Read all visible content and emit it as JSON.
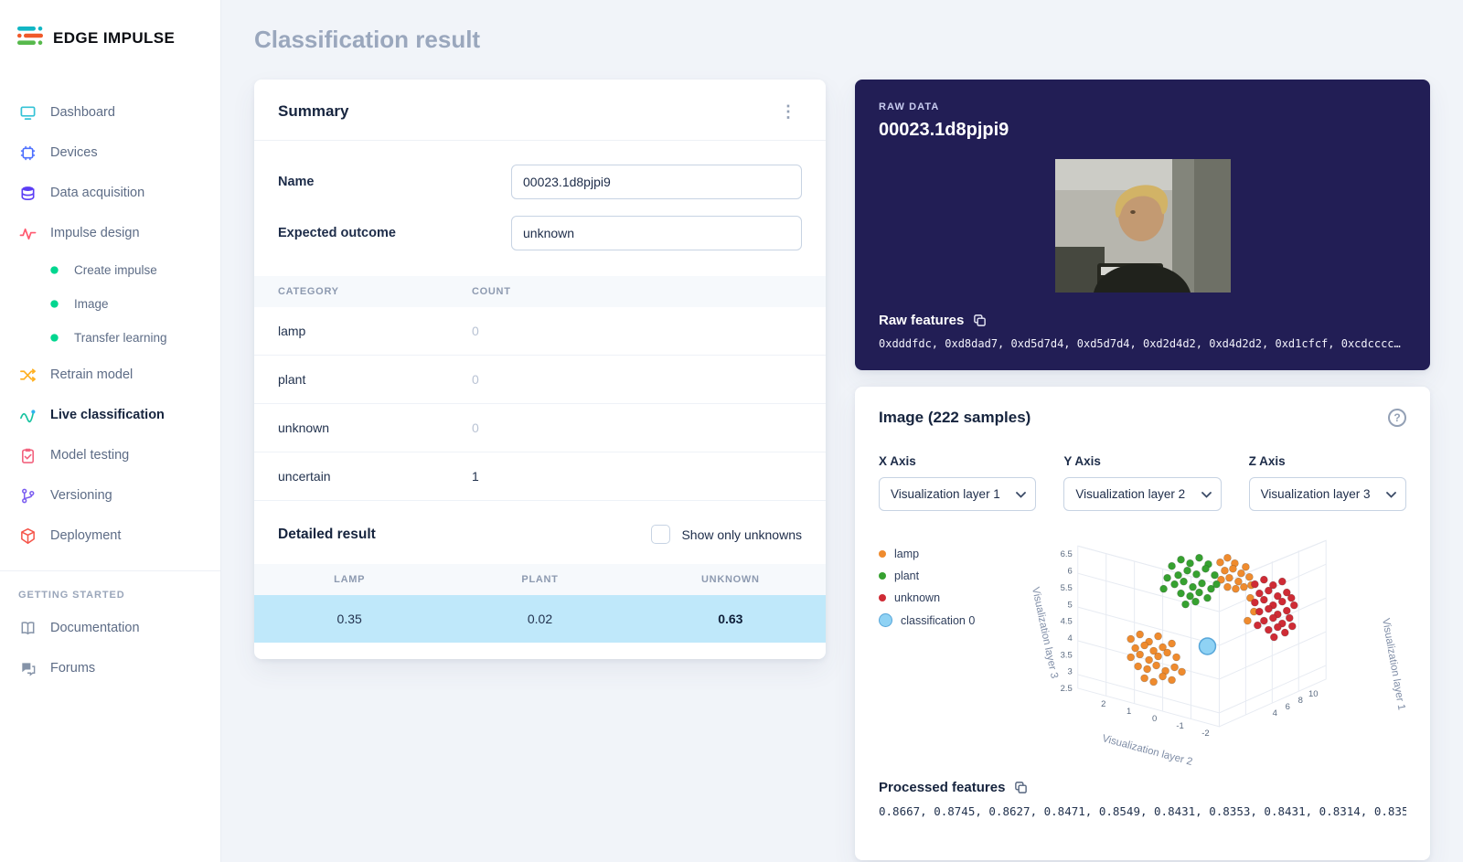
{
  "page": {
    "title": "Classification result"
  },
  "sidebar": {
    "logo_text": "EDGE IMPULSE",
    "items": [
      {
        "id": "dashboard",
        "label": "Dashboard",
        "icon": "dashboard-icon",
        "type": "main"
      },
      {
        "id": "devices",
        "label": "Devices",
        "icon": "devices-icon",
        "type": "main"
      },
      {
        "id": "data-acquisition",
        "label": "Data acquisition",
        "icon": "data-acquisition-icon",
        "type": "main"
      },
      {
        "id": "impulse-design",
        "label": "Impulse design",
        "icon": "impulse-design-icon",
        "type": "main"
      },
      {
        "id": "create-impulse",
        "label": "Create impulse",
        "icon": "status-dot-icon",
        "type": "sub"
      },
      {
        "id": "image",
        "label": "Image",
        "icon": "status-dot-icon",
        "type": "sub"
      },
      {
        "id": "transfer-learning",
        "label": "Transfer learning",
        "icon": "status-dot-icon",
        "type": "sub"
      },
      {
        "id": "retrain-model",
        "label": "Retrain model",
        "icon": "retrain-icon",
        "type": "main"
      },
      {
        "id": "live-classification",
        "label": "Live classification",
        "icon": "live-classification-icon",
        "type": "main",
        "active": true
      },
      {
        "id": "model-testing",
        "label": "Model testing",
        "icon": "model-testing-icon",
        "type": "main"
      },
      {
        "id": "versioning",
        "label": "Versioning",
        "icon": "versioning-icon",
        "type": "main"
      },
      {
        "id": "deployment",
        "label": "Deployment",
        "icon": "deployment-icon",
        "type": "main"
      }
    ],
    "section_label": "GETTING STARTED",
    "footer_items": [
      {
        "id": "documentation",
        "label": "Documentation",
        "icon": "documentation-icon"
      },
      {
        "id": "forums",
        "label": "Forums",
        "icon": "forums-icon"
      }
    ]
  },
  "summary": {
    "title": "Summary",
    "fields": [
      {
        "label": "Name",
        "value": "00023.1d8pjpi9"
      },
      {
        "label": "Expected outcome",
        "value": "unknown"
      }
    ],
    "category_table": {
      "headers": [
        "CATEGORY",
        "COUNT"
      ],
      "rows": [
        {
          "category": "lamp",
          "count": "0"
        },
        {
          "category": "plant",
          "count": "0"
        },
        {
          "category": "unknown",
          "count": "0"
        },
        {
          "category": "uncertain",
          "count": "1"
        }
      ]
    },
    "detailed_result": {
      "title": "Detailed result",
      "filter_label": "Show only unknowns",
      "headers": [
        "LAMP",
        "PLANT",
        "UNKNOWN"
      ],
      "row": [
        "0.35",
        "0.02",
        "0.63"
      ]
    }
  },
  "raw_data": {
    "label": "RAW DATA",
    "title": "00023.1d8pjpi9",
    "features_label": "Raw features",
    "features": "0xdddfdc, 0xd8dad7, 0xd5d7d4, 0xd5d7d4, 0xd2d4d2, 0xd4d2d2, 0xd1cfcf, 0xcdcccc…"
  },
  "feature_explorer": {
    "title": "Image (222 samples)",
    "axes": [
      {
        "label": "X Axis",
        "value": "Visualization layer 1"
      },
      {
        "label": "Y Axis",
        "value": "Visualization layer 2"
      },
      {
        "label": "Z Axis",
        "value": "Visualization layer 3"
      }
    ],
    "processed_label": "Processed features",
    "processed": "0.8667, 0.8745, 0.8627, 0.8471, 0.8549, 0.8431, 0.8353, 0.8431, 0.8314, 0.8353…"
  },
  "chart_data": {
    "type": "scatter",
    "projection": "3d",
    "legend_position": "left",
    "axis_titles": {
      "x": "Visualization layer 1",
      "y": "Visualization layer 2",
      "z": "Visualization layer 3"
    },
    "z_ticks": [
      "6.5",
      "6",
      "5.5",
      "5",
      "4.5",
      "4",
      "3.5",
      "3",
      "2.5"
    ],
    "y_ticks": [
      "2",
      "1",
      "0",
      "-1",
      "-2"
    ],
    "x_ticks": [
      "4",
      "6",
      "8",
      "10"
    ],
    "series": [
      {
        "name": "lamp",
        "color": "#ef8b2e",
        "marker_size": 4,
        "points": [
          [
            256,
            30
          ],
          [
            264,
            25
          ],
          [
            272,
            31
          ],
          [
            261,
            39
          ],
          [
            270,
            37
          ],
          [
            279,
            42
          ],
          [
            257,
            49
          ],
          [
            266,
            47
          ],
          [
            276,
            51
          ],
          [
            284,
            35
          ],
          [
            288,
            46
          ],
          [
            264,
            57
          ],
          [
            273,
            59
          ],
          [
            282,
            57
          ],
          [
            290,
            55
          ],
          [
            158,
            114
          ],
          [
            168,
            109
          ],
          [
            178,
            117
          ],
          [
            188,
            111
          ],
          [
            163,
            124
          ],
          [
            173,
            121
          ],
          [
            183,
            127
          ],
          [
            193,
            123
          ],
          [
            203,
            119
          ],
          [
            158,
            134
          ],
          [
            168,
            131
          ],
          [
            178,
            137
          ],
          [
            188,
            133
          ],
          [
            198,
            129
          ],
          [
            208,
            134
          ],
          [
            166,
            144
          ],
          [
            176,
            147
          ],
          [
            186,
            143
          ],
          [
            196,
            149
          ],
          [
            206,
            145
          ],
          [
            173,
            157
          ],
          [
            183,
            161
          ],
          [
            193,
            155
          ],
          [
            203,
            159
          ],
          [
            214,
            150
          ],
          [
            289,
            69
          ],
          [
            293,
            84
          ],
          [
            286,
            94
          ]
        ]
      },
      {
        "name": "plant",
        "color": "#36a130",
        "marker_size": 4,
        "points": [
          [
            203,
            34
          ],
          [
            213,
            27
          ],
          [
            223,
            31
          ],
          [
            233,
            25
          ],
          [
            243,
            32
          ],
          [
            210,
            44
          ],
          [
            220,
            39
          ],
          [
            230,
            43
          ],
          [
            240,
            37
          ],
          [
            250,
            44
          ],
          [
            206,
            54
          ],
          [
            216,
            51
          ],
          [
            226,
            57
          ],
          [
            236,
            53
          ],
          [
            246,
            59
          ],
          [
            213,
            64
          ],
          [
            223,
            67
          ],
          [
            233,
            63
          ],
          [
            198,
            47
          ],
          [
            194,
            59
          ],
          [
            242,
            69
          ],
          [
            252,
            54
          ],
          [
            229,
            73
          ],
          [
            218,
            76
          ]
        ]
      },
      {
        "name": "unknown",
        "color": "#cf2b35",
        "marker_size": 4,
        "points": [
          [
            294,
            54
          ],
          [
            304,
            49
          ],
          [
            314,
            55
          ],
          [
            324,
            51
          ],
          [
            299,
            64
          ],
          [
            309,
            61
          ],
          [
            319,
            67
          ],
          [
            329,
            63
          ],
          [
            294,
            74
          ],
          [
            304,
            71
          ],
          [
            314,
            77
          ],
          [
            324,
            73
          ],
          [
            334,
            69
          ],
          [
            299,
            84
          ],
          [
            309,
            81
          ],
          [
            319,
            87
          ],
          [
            329,
            83
          ],
          [
            337,
            77
          ],
          [
            304,
            94
          ],
          [
            314,
            91
          ],
          [
            324,
            97
          ],
          [
            332,
            91
          ],
          [
            309,
            104
          ],
          [
            319,
            101
          ],
          [
            327,
            107
          ],
          [
            297,
            99
          ],
          [
            335,
            100
          ],
          [
            315,
            112
          ]
        ]
      },
      {
        "name": "classification 0",
        "color": "#8fd2f4",
        "stroke": "#57a6d9",
        "marker_size": 9,
        "points": [
          [
            242,
            122
          ]
        ]
      }
    ]
  }
}
